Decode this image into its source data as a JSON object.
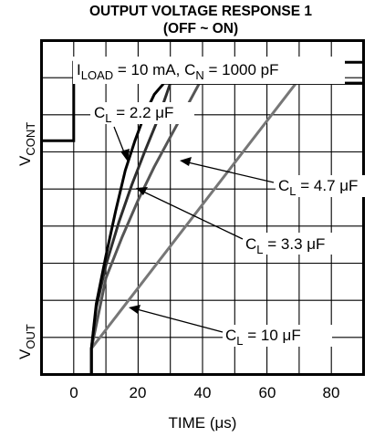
{
  "chart_data": {
    "type": "line",
    "title": "OUTPUT VOLTAGE RESPONSE 1",
    "subtitle": "(OFF ~ ON)",
    "xlabel": "TIME (μs)",
    "xlim": [
      -10,
      90
    ],
    "x_ticks": [
      "0",
      "20",
      "40",
      "60",
      "80"
    ],
    "x_tick_values": [
      0,
      20,
      40,
      60,
      80
    ],
    "grid": true,
    "conditions": {
      "iload": {
        "main": "I",
        "sub": "LOAD",
        "rest": " = 10 mA, C"
      },
      "cn": {
        "sub": "N",
        "rest": " = 1000 pF"
      }
    },
    "y_labels": [
      {
        "main": "V",
        "sub": "CONT"
      },
      {
        "main": "V",
        "sub": "OUT"
      }
    ],
    "vcont_trace": {
      "x": [
        -10,
        0,
        0,
        90
      ],
      "low_level": "low",
      "high_level": "high"
    },
    "series": [
      {
        "name": "C",
        "sub": "L",
        "value": " = 2.2 μF",
        "color": "#000000",
        "x": [
          5.5,
          5.5,
          7,
          10,
          13,
          16,
          19,
          22,
          25,
          28,
          90
        ],
        "y": [
          0,
          0.7,
          1.9,
          3.2,
          4.4,
          5.5,
          6.3,
          7.0,
          7.55,
          7.85,
          7.85
        ]
      },
      {
        "name": "C",
        "sub": "L",
        "value": " = 3.3 μF",
        "color": "#2d2d2d",
        "x": [
          5.5,
          5.5,
          7,
          10,
          14,
          18,
          22,
          26,
          30,
          90
        ],
        "y": [
          0,
          0.7,
          1.8,
          2.95,
          4.1,
          5.1,
          6.0,
          6.85,
          7.85,
          7.85
        ]
      },
      {
        "name": "C",
        "sub": "L",
        "value": " = 4.7 μF",
        "color": "#555555",
        "x": [
          5.5,
          5.5,
          10,
          15,
          20,
          25,
          30,
          35,
          39,
          90
        ],
        "y": [
          0,
          0.7,
          2.6,
          3.7,
          4.7,
          5.6,
          6.4,
          7.2,
          7.85,
          7.85
        ]
      },
      {
        "name": "C",
        "sub": "L",
        "value": " = 10 μF",
        "color": "#777777",
        "x": [
          5.5,
          5.5,
          69
        ],
        "y": [
          0,
          0.7,
          7.85
        ]
      }
    ],
    "ylim": [
      0,
      9
    ]
  }
}
